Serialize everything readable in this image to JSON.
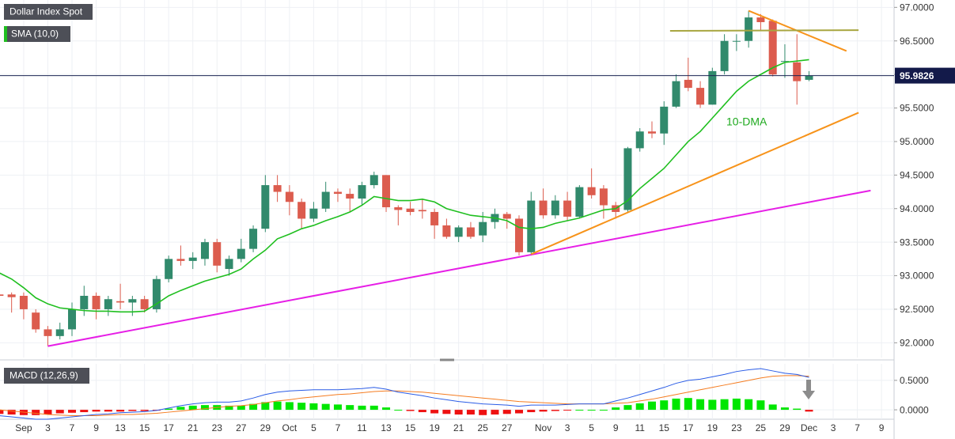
{
  "chart_data": [
    {
      "type": "candlestick",
      "title": "Dollar Index Spot",
      "x": [
        -2,
        -1,
        0,
        1,
        2,
        3,
        4,
        5,
        6,
        7,
        8,
        9,
        10,
        11,
        12,
        13,
        14,
        15,
        16,
        17,
        18,
        19,
        20,
        21,
        22,
        23,
        24,
        25,
        26,
        27,
        28,
        29,
        30,
        31,
        32,
        33,
        34,
        35,
        36,
        37,
        38,
        39,
        40,
        41,
        42,
        43,
        44,
        45,
        46,
        47,
        48,
        49,
        50,
        51,
        52,
        53,
        54,
        55,
        56,
        57,
        58,
        59,
        60,
        61,
        62,
        63,
        64,
        65
      ],
      "open": [
        92.72,
        92.72,
        92.7,
        92.45,
        92.2,
        92.1,
        92.2,
        92.5,
        92.7,
        92.5,
        92.62,
        92.6,
        92.65,
        92.5,
        92.95,
        93.25,
        93.22,
        93.25,
        93.5,
        93.1,
        93.25,
        93.4,
        93.7,
        94.35,
        94.25,
        94.1,
        93.85,
        94.0,
        94.25,
        94.22,
        94.15,
        94.35,
        94.5,
        94.02,
        94.0,
        93.98,
        93.95,
        93.75,
        93.58,
        93.72,
        93.6,
        93.8,
        93.92,
        93.85,
        93.35,
        94.12,
        93.9,
        94.12,
        93.88,
        94.32,
        94.3,
        94.05,
        93.98,
        94.9,
        95.15,
        95.12,
        95.52,
        95.92,
        95.8,
        95.55,
        96.05,
        96.5,
        96.5,
        96.85,
        96.8,
        96.2,
        96.18,
        95.92
      ],
      "high": [
        92.8,
        92.75,
        92.75,
        92.5,
        92.25,
        92.3,
        92.6,
        92.85,
        92.75,
        92.7,
        92.88,
        92.7,
        92.7,
        93.0,
        93.3,
        93.45,
        93.35,
        93.55,
        93.55,
        93.3,
        93.55,
        93.75,
        94.5,
        94.5,
        94.35,
        94.15,
        94.1,
        94.4,
        94.3,
        94.3,
        94.4,
        94.55,
        94.5,
        94.05,
        94.1,
        94.15,
        94.0,
        93.85,
        93.75,
        93.8,
        93.95,
        94.0,
        93.95,
        93.9,
        94.25,
        94.3,
        94.2,
        94.25,
        94.35,
        94.6,
        94.35,
        94.1,
        94.92,
        95.2,
        95.3,
        95.6,
        96.0,
        96.25,
        95.9,
        96.1,
        96.6,
        96.6,
        96.95,
        96.9,
        96.82,
        96.45,
        96.6,
        96.05
      ],
      "low": [
        92.6,
        92.45,
        92.35,
        92.15,
        91.95,
        92.05,
        92.1,
        92.4,
        92.35,
        92.4,
        92.5,
        92.4,
        92.45,
        92.45,
        92.9,
        93.15,
        93.1,
        93.15,
        93.05,
        93.0,
        93.2,
        93.35,
        93.65,
        94.1,
        93.9,
        93.7,
        93.8,
        93.95,
        94.1,
        93.95,
        94.05,
        94.3,
        93.95,
        93.75,
        93.9,
        93.85,
        93.55,
        93.55,
        93.5,
        93.55,
        93.5,
        93.7,
        93.7,
        93.3,
        93.3,
        93.85,
        93.85,
        93.82,
        93.85,
        94.15,
        93.85,
        93.85,
        93.95,
        94.85,
        95.05,
        94.95,
        95.5,
        95.75,
        95.5,
        95.55,
        96.0,
        96.35,
        96.4,
        96.65,
        95.97,
        95.95,
        95.55,
        95.9
      ],
      "close": [
        92.7,
        92.68,
        92.5,
        92.2,
        92.1,
        92.2,
        92.5,
        92.7,
        92.5,
        92.65,
        92.6,
        92.65,
        92.5,
        92.95,
        93.25,
        93.22,
        93.27,
        93.5,
        93.15,
        93.25,
        93.4,
        93.7,
        94.35,
        94.25,
        94.1,
        93.85,
        94.0,
        94.25,
        94.22,
        94.15,
        94.35,
        94.5,
        94.02,
        93.98,
        93.95,
        93.96,
        93.75,
        93.58,
        93.72,
        93.58,
        93.8,
        93.92,
        93.85,
        93.35,
        94.12,
        93.9,
        94.12,
        93.88,
        94.32,
        94.2,
        94.05,
        93.95,
        94.9,
        95.15,
        95.12,
        95.52,
        95.9,
        95.8,
        95.55,
        96.05,
        96.5,
        96.5,
        96.85,
        96.78,
        96.0,
        96.2,
        95.9,
        95.98
      ],
      "up_color": "#318a6c",
      "down_color": "#dc5c4e",
      "sma": {
        "name": "SMA (10,0)",
        "color": "#1fbf1f",
        "values": [
          93.04,
          92.95,
          92.82,
          92.67,
          92.58,
          92.52,
          92.5,
          92.48,
          92.47,
          92.47,
          92.46,
          92.46,
          92.47,
          92.58,
          92.7,
          92.78,
          92.85,
          92.92,
          92.97,
          93.02,
          93.1,
          93.25,
          93.38,
          93.55,
          93.62,
          93.7,
          93.75,
          93.82,
          93.88,
          93.95,
          94.05,
          94.18,
          94.15,
          94.12,
          94.12,
          94.14,
          94.1,
          94.0,
          93.95,
          93.9,
          93.88,
          93.86,
          93.82,
          93.72,
          93.7,
          93.72,
          93.78,
          93.82,
          93.86,
          93.92,
          93.98,
          94.0,
          94.12,
          94.3,
          94.45,
          94.6,
          94.8,
          95.0,
          95.15,
          95.35,
          95.55,
          95.75,
          95.9,
          96.0,
          96.1,
          96.18,
          96.2,
          96.22
        ]
      },
      "annotation": "10-DMA",
      "trendlines": [
        {
          "color": "#e61ee6",
          "x": [
            2,
            70.1
          ],
          "y": [
            91.95,
            94.27
          ]
        },
        {
          "color": "#f7931a",
          "x": [
            42,
            69.1
          ],
          "y": [
            93.32,
            95.43
          ]
        },
        {
          "color": "#f7931a",
          "x": [
            60,
            68.1
          ],
          "y": [
            96.95,
            96.35
          ]
        },
        {
          "color": "#a8a640",
          "x": [
            53.5,
            69.1
          ],
          "y": [
            96.65,
            96.66
          ]
        }
      ],
      "last_price": 95.9826,
      "xlim": [
        -1.96,
        72.04
      ],
      "ylim": [
        91.78,
        97.11
      ],
      "yticks": [
        {
          "value": 92,
          "label": "92.0000"
        },
        {
          "value": 92.5,
          "label": "92.5000"
        },
        {
          "value": 93,
          "label": "93.0000"
        },
        {
          "value": 93.5,
          "label": "93.5000"
        },
        {
          "value": 94,
          "label": "94.0000"
        },
        {
          "value": 94.5,
          "label": "94.5000"
        },
        {
          "value": 95,
          "label": "95.0000"
        },
        {
          "value": 95.5,
          "label": "95.5000"
        },
        {
          "value": 96,
          "label": "96.0000"
        },
        {
          "value": 96.5,
          "label": "96.5000"
        },
        {
          "value": 97,
          "label": "97.0000"
        }
      ],
      "xticks": [
        {
          "value": 0,
          "label": "Sep"
        },
        {
          "value": 2,
          "label": "3"
        },
        {
          "value": 4,
          "label": "7"
        },
        {
          "value": 6,
          "label": "9"
        },
        {
          "value": 8,
          "label": "13"
        },
        {
          "value": 10,
          "label": "15"
        },
        {
          "value": 12,
          "label": "17"
        },
        {
          "value": 14,
          "label": "21"
        },
        {
          "value": 16,
          "label": "23"
        },
        {
          "value": 18,
          "label": "27"
        },
        {
          "value": 20,
          "label": "29"
        },
        {
          "value": 22,
          "label": "Oct"
        },
        {
          "value": 24,
          "label": "5"
        },
        {
          "value": 26,
          "label": "7"
        },
        {
          "value": 28,
          "label": "11"
        },
        {
          "value": 30,
          "label": "13"
        },
        {
          "value": 32,
          "label": "15"
        },
        {
          "value": 34,
          "label": "19"
        },
        {
          "value": 36,
          "label": "21"
        },
        {
          "value": 38,
          "label": "25"
        },
        {
          "value": 40,
          "label": "27"
        },
        {
          "value": 43,
          "label": "Nov"
        },
        {
          "value": 45,
          "label": "3"
        },
        {
          "value": 47,
          "label": "5"
        },
        {
          "value": 49,
          "label": "9"
        },
        {
          "value": 51,
          "label": "11"
        },
        {
          "value": 53,
          "label": "15"
        },
        {
          "value": 55,
          "label": "17"
        },
        {
          "value": 57,
          "label": "19"
        },
        {
          "value": 59,
          "label": "23"
        },
        {
          "value": 61,
          "label": "25"
        },
        {
          "value": 63,
          "label": "29"
        },
        {
          "value": 65,
          "label": "Dec"
        },
        {
          "value": 67,
          "label": "3"
        },
        {
          "value": 69,
          "label": "7"
        },
        {
          "value": 71,
          "label": "9"
        }
      ],
      "grid": true
    },
    {
      "type": "macd",
      "title": "MACD (12,26,9)",
      "macd": {
        "color": "#2a5ce6",
        "values": [
          -0.1,
          -0.12,
          -0.14,
          -0.16,
          -0.16,
          -0.14,
          -0.12,
          -0.1,
          -0.08,
          -0.07,
          -0.05,
          -0.04,
          -0.03,
          -0.01,
          0.03,
          0.07,
          0.1,
          0.12,
          0.13,
          0.13,
          0.15,
          0.2,
          0.26,
          0.3,
          0.32,
          0.33,
          0.34,
          0.34,
          0.34,
          0.35,
          0.36,
          0.38,
          0.35,
          0.3,
          0.27,
          0.24,
          0.2,
          0.17,
          0.14,
          0.12,
          0.1,
          0.09,
          0.08,
          0.06,
          0.08,
          0.08,
          0.08,
          0.09,
          0.1,
          0.1,
          0.1,
          0.15,
          0.2,
          0.26,
          0.32,
          0.38,
          0.45,
          0.5,
          0.52,
          0.56,
          0.6,
          0.65,
          0.68,
          0.7,
          0.66,
          0.62,
          0.6,
          0.55
        ]
      },
      "signal": {
        "color": "#f57c20",
        "values": [
          0.0,
          -0.02,
          -0.04,
          -0.06,
          -0.08,
          -0.09,
          -0.1,
          -0.1,
          -0.1,
          -0.09,
          -0.08,
          -0.08,
          -0.07,
          -0.06,
          -0.04,
          -0.02,
          0.0,
          0.02,
          0.04,
          0.06,
          0.07,
          0.09,
          0.12,
          0.15,
          0.17,
          0.2,
          0.22,
          0.24,
          0.26,
          0.27,
          0.29,
          0.31,
          0.32,
          0.32,
          0.31,
          0.3,
          0.28,
          0.26,
          0.24,
          0.22,
          0.2,
          0.18,
          0.16,
          0.14,
          0.13,
          0.12,
          0.11,
          0.1,
          0.1,
          0.1,
          0.1,
          0.11,
          0.12,
          0.15,
          0.18,
          0.22,
          0.26,
          0.3,
          0.34,
          0.38,
          0.42,
          0.46,
          0.5,
          0.54,
          0.57,
          0.58,
          0.58,
          0.57
        ]
      },
      "histogram": {
        "up_color": "#00e600",
        "down_color": "#ee1111",
        "values": [
          -0.07,
          -0.08,
          -0.09,
          -0.09,
          -0.08,
          -0.06,
          -0.05,
          -0.04,
          -0.03,
          -0.03,
          -0.03,
          -0.02,
          -0.02,
          -0.01,
          0.02,
          0.05,
          0.07,
          0.08,
          0.08,
          0.07,
          0.07,
          0.1,
          0.13,
          0.14,
          0.13,
          0.12,
          0.11,
          0.1,
          0.09,
          0.08,
          0.07,
          0.07,
          0.04,
          0.0,
          -0.02,
          -0.04,
          -0.06,
          -0.07,
          -0.08,
          -0.08,
          -0.09,
          -0.08,
          -0.07,
          -0.06,
          -0.04,
          -0.03,
          -0.02,
          -0.01,
          0.0,
          0.0,
          0.0,
          0.04,
          0.08,
          0.11,
          0.14,
          0.16,
          0.19,
          0.2,
          0.18,
          0.17,
          0.18,
          0.19,
          0.18,
          0.16,
          0.09,
          0.04,
          0.02,
          -0.03
        ]
      },
      "ylim": [
        -0.16,
        0.78
      ],
      "yticks": [
        {
          "value": 0,
          "label": "0.0000"
        },
        {
          "value": 0.5,
          "label": "0.5000"
        }
      ],
      "grid": true
    }
  ]
}
